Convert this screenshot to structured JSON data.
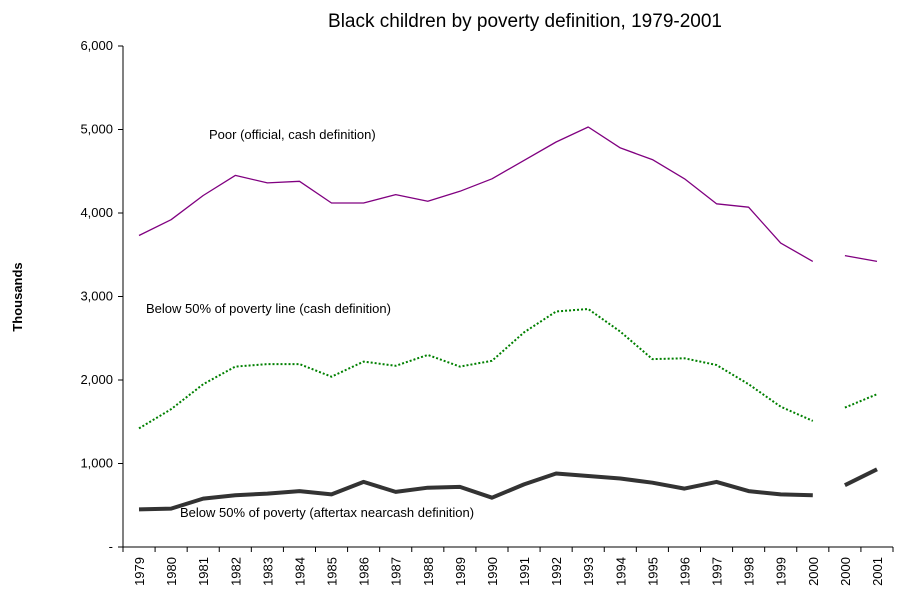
{
  "chart_data": {
    "type": "line",
    "title": "Black children by poverty definition, 1979-2001",
    "xlabel": "",
    "ylabel": "Thousands",
    "ylim": [
      0,
      6000
    ],
    "y_ticks": [
      "-",
      "1,000",
      "2,000",
      "3,000",
      "4,000",
      "5,000",
      "6,000"
    ],
    "categories": [
      "1979",
      "1980",
      "1981",
      "1982",
      "1983",
      "1984",
      "1985",
      "1986",
      "1987",
      "1988",
      "1989",
      "1990",
      "1991",
      "1992",
      "1993",
      "1994",
      "1995",
      "1996",
      "1997",
      "1998",
      "1999",
      "2000",
      "2000",
      "2001"
    ],
    "grid": false,
    "legend": "none",
    "series": [
      {
        "name": "Poor (official, cash definition)",
        "color": "#800080",
        "style": "solid",
        "segments": [
          {
            "start": 0,
            "values": [
              3730,
              3920,
              4210,
              4450,
              4360,
              4380,
              4120,
              4120,
              4220,
              4140,
              4260,
              4410,
              4630,
              4850,
              5030,
              4780,
              4640,
              4410,
              4110,
              4070,
              3640,
              3420
            ]
          },
          {
            "start": 22,
            "values": [
              3490,
              3420
            ]
          }
        ]
      },
      {
        "name": "Below 50% of poverty line (cash definition)",
        "color": "#008000",
        "style": "dotted",
        "segments": [
          {
            "start": 0,
            "values": [
              1420,
              1650,
              1950,
              2160,
              2190,
              2190,
              2040,
              2220,
              2170,
              2300,
              2160,
              2230,
              2570,
              2820,
              2850,
              2580,
              2250,
              2260,
              2180,
              1950,
              1680,
              1510
            ]
          },
          {
            "start": 22,
            "values": [
              1670,
              1830
            ]
          }
        ]
      },
      {
        "name": "Below 50% of poverty (aftertax nearcash definition)",
        "color": "#333333",
        "style": "solid",
        "segments": [
          {
            "start": 0,
            "values": [
              450,
              460,
              580,
              620,
              640,
              670,
              630,
              780,
              660,
              710,
              720,
              590,
              750,
              880,
              850,
              820,
              770,
              700,
              780,
              670,
              630,
              620
            ]
          },
          {
            "start": 22,
            "values": [
              740,
              930
            ]
          }
        ]
      }
    ],
    "annotations": [
      {
        "text": "Poor (official, cash definition)",
        "series": 0
      },
      {
        "text": "Below 50% of poverty line (cash definition)",
        "series": 1
      },
      {
        "text": "Below 50% of poverty (aftertax nearcash definition)",
        "series": 2
      }
    ]
  }
}
